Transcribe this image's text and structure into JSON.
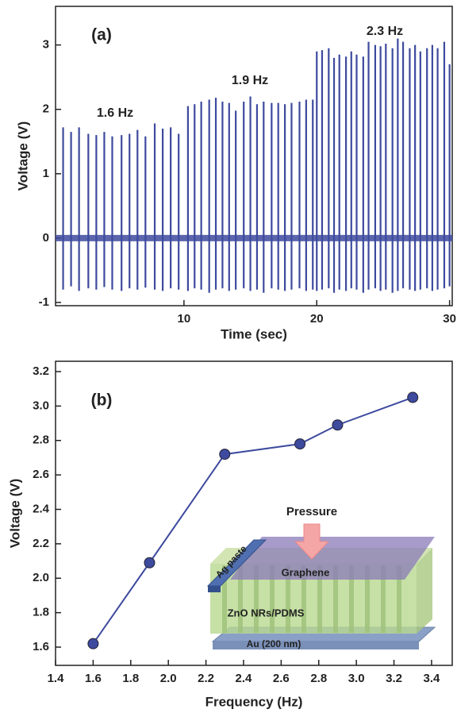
{
  "chart_data": [
    {
      "type": "spike",
      "panel_label": "(a)",
      "xlabel": "Time (sec)",
      "ylabel": "Voltage (V)",
      "annotations": [
        "1.6 Hz",
        "1.9 Hz",
        "2.3 Hz"
      ],
      "annotation_color": "#e8413c",
      "color": "#3d4a9e",
      "x": [
        0.9,
        1.5,
        2.1,
        2.8,
        3.4,
        4.0,
        4.6,
        5.3,
        5.9,
        6.5,
        7.1,
        7.8,
        8.4,
        9.0,
        9.6,
        10.3,
        10.8,
        11.3,
        11.9,
        12.4,
        12.9,
        13.4,
        13.9,
        14.5,
        15.0,
        15.5,
        16.0,
        16.6,
        17.1,
        17.6,
        18.1,
        18.7,
        19.2,
        19.7,
        20.0,
        20.4,
        20.9,
        21.3,
        21.7,
        22.2,
        22.6,
        23.0,
        23.5,
        23.9,
        24.4,
        24.8,
        25.2,
        25.7,
        26.1,
        26.5,
        27.0,
        27.4,
        27.8,
        28.3,
        28.7,
        29.1,
        29.6,
        30.0
      ],
      "values": [
        1.72,
        1.65,
        1.72,
        1.62,
        1.6,
        1.65,
        1.58,
        1.6,
        1.62,
        1.68,
        1.58,
        1.78,
        1.7,
        1.72,
        1.62,
        2.05,
        2.08,
        2.12,
        2.15,
        2.18,
        2.12,
        2.1,
        1.98,
        2.12,
        2.2,
        2.08,
        2.12,
        2.1,
        2.1,
        2.08,
        2.1,
        2.12,
        2.15,
        2.15,
        2.9,
        2.92,
        2.95,
        2.8,
        2.85,
        2.82,
        2.9,
        2.85,
        2.82,
        3.05,
        3.0,
        2.98,
        3.02,
        2.95,
        3.1,
        3.05,
        2.95,
        3.0,
        2.9,
        2.95,
        3.0,
        2.95,
        3.05,
        2.7
      ],
      "troughs": [
        -0.8,
        -0.75,
        -0.82,
        -0.78,
        -0.8,
        -0.76,
        -0.8,
        -0.82,
        -0.78,
        -0.8,
        -0.77,
        -0.8,
        -0.82,
        -0.78,
        -0.8,
        -0.82,
        -0.78,
        -0.8,
        -0.85,
        -0.8,
        -0.78,
        -0.82,
        -0.8,
        -0.78,
        -0.82,
        -0.8,
        -0.85,
        -0.78,
        -0.8,
        -0.82,
        -0.8,
        -0.78,
        -0.82,
        -0.8,
        -0.82,
        -0.8,
        -0.78,
        -0.85,
        -0.8,
        -0.82,
        -0.78,
        -0.8,
        -0.85,
        -0.8,
        -0.78,
        -0.82,
        -0.8,
        -0.85,
        -0.82,
        -0.78,
        -0.8,
        -0.82,
        -0.8,
        -0.78,
        -0.82,
        -0.8,
        -0.78,
        -0.75
      ],
      "xlim": [
        0.33,
        30.2
      ],
      "ylim": [
        -1.05,
        3.6
      ],
      "xticks": [
        10,
        20,
        30
      ],
      "yticks": [
        -1,
        0,
        1,
        2,
        3
      ]
    },
    {
      "type": "line",
      "panel_label": "(b)",
      "xlabel": "Frequency (Hz)",
      "ylabel": "Voltage (V)",
      "color": "#3d4a9e",
      "x": [
        1.6,
        1.9,
        2.3,
        2.7,
        2.9,
        3.3
      ],
      "values": [
        1.62,
        2.09,
        2.72,
        2.78,
        2.89,
        3.05
      ],
      "xlim": [
        1.4,
        3.51
      ],
      "ylim": [
        1.494,
        3.26
      ],
      "xticks": [
        1.4,
        1.6,
        1.8,
        {
          "value": 2,
          "label": "2.0"
        },
        2.2,
        2.4,
        2.6,
        2.8,
        {
          "value": 3,
          "label": "3.0"
        },
        3.2,
        3.4
      ],
      "yticks": [
        1.6,
        1.8,
        {
          "value": 2,
          "label": "2.0"
        },
        2.2,
        2.4,
        2.6,
        2.8,
        {
          "value": 3,
          "label": "3.0"
        },
        3.2
      ],
      "inset": {
        "pressure": "Pressure",
        "ag_paste": "Ag paste",
        "graphene": "Graphene",
        "zno": "ZnO NRs/PDMS",
        "au": "Au (200 nm)"
      }
    }
  ]
}
